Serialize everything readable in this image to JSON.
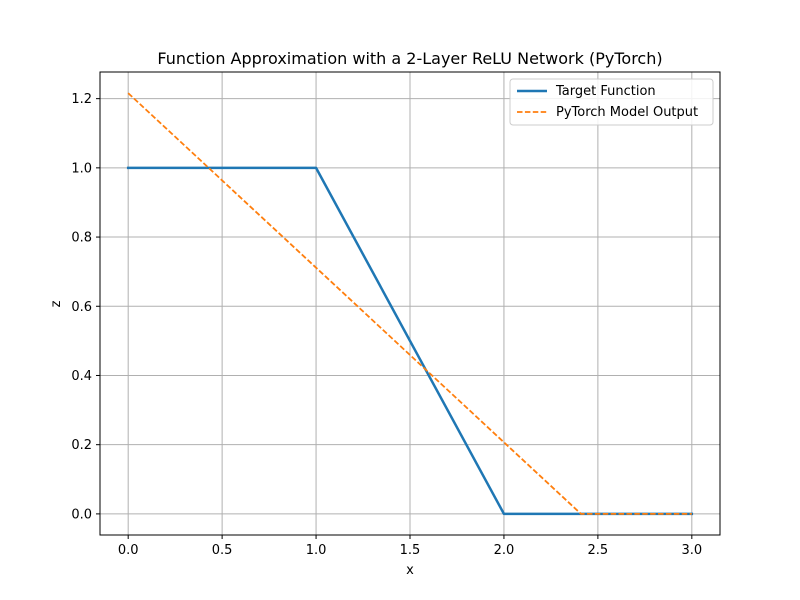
{
  "chart_data": {
    "type": "line",
    "title": "Function Approximation with a 2-Layer ReLU Network (PyTorch)",
    "xlabel": "x",
    "ylabel": "z",
    "xlim": [
      -0.15,
      3.15
    ],
    "ylim": [
      -0.061,
      1.277
    ],
    "xticks": [
      0.0,
      0.5,
      1.0,
      1.5,
      2.0,
      2.5,
      3.0
    ],
    "xtick_labels": [
      "0.0",
      "0.5",
      "1.0",
      "1.5",
      "2.0",
      "2.5",
      "3.0"
    ],
    "yticks": [
      0.0,
      0.2,
      0.4,
      0.6,
      0.8,
      1.0,
      1.2
    ],
    "ytick_labels": [
      "0.0",
      "0.2",
      "0.4",
      "0.6",
      "0.8",
      "1.0",
      "1.2"
    ],
    "grid": true,
    "legend_position": "upper right",
    "series": [
      {
        "name": "Target Function",
        "style": "solid",
        "color": "#1f77b4",
        "x": [
          0.0,
          1.0,
          2.0,
          3.0
        ],
        "y": [
          1.0,
          1.0,
          0.0,
          0.0
        ]
      },
      {
        "name": "PyTorch Model Output",
        "style": "dashed",
        "color": "#ff7f0e",
        "x": [
          0.0,
          2.41,
          3.0
        ],
        "y": [
          1.216,
          0.0,
          0.0
        ]
      }
    ]
  }
}
